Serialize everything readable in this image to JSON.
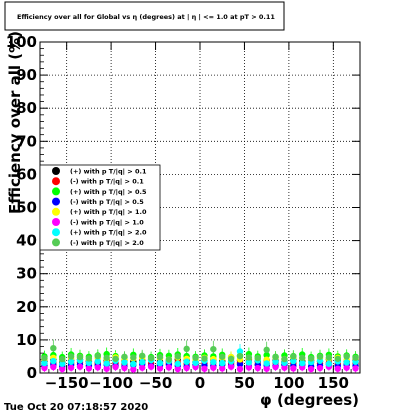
{
  "footer": {
    "timestamp": "Tue Oct 20 07:18:57 2020"
  },
  "chart_data": {
    "type": "scatter",
    "title": "Efficiency over all for Global vs η (degrees) at | η | <= 1.0 at pT > 0.11",
    "xlabel": "φ (degrees)",
    "ylabel": "Efficiency over all (%)",
    "xlim": [
      -180,
      180
    ],
    "ylim": [
      0,
      100
    ],
    "x_ticks": [
      -150,
      -100,
      -50,
      0,
      50,
      100,
      150
    ],
    "y_ticks": [
      0,
      10,
      20,
      30,
      40,
      50,
      60,
      70,
      80,
      90,
      100
    ],
    "grid": true,
    "legend_position": "left-middle",
    "x": [
      -175,
      -165,
      -155,
      -145,
      -135,
      -125,
      -115,
      -105,
      -95,
      -85,
      -75,
      -65,
      -55,
      -45,
      -35,
      -25,
      -15,
      -5,
      5,
      15,
      25,
      35,
      45,
      55,
      65,
      75,
      85,
      95,
      105,
      115,
      125,
      135,
      145,
      155,
      165,
      175
    ],
    "series": [
      {
        "name": "(+) with p T/|q| > 0.1",
        "color": "#000000",
        "marker": "circle",
        "values": [
          3.5,
          4.0,
          3.2,
          3.8,
          4.1,
          3.6,
          3.3,
          3.9,
          4.2,
          3.7,
          3.4,
          3.8,
          4.0,
          3.5,
          3.6,
          4.1,
          3.9,
          3.3,
          3.7,
          4.0,
          3.6,
          3.4,
          3.8,
          4.2,
          3.5,
          3.9,
          3.7,
          3.3,
          4.0,
          3.6,
          3.8,
          3.5,
          4.1,
          3.7,
          3.4,
          3.9
        ]
      },
      {
        "name": "(-) with p T/|q| > 0.1",
        "color": "#ff0000",
        "marker": "circle",
        "values": [
          2.8,
          3.1,
          2.6,
          3.0,
          3.3,
          2.9,
          2.7,
          3.2,
          3.0,
          2.8,
          2.5,
          3.1,
          2.9,
          2.7,
          3.0,
          3.2,
          2.8,
          2.6,
          2.9,
          3.1,
          2.7,
          2.8,
          3.0,
          3.3,
          2.6,
          2.9,
          3.1,
          2.7,
          3.0,
          2.8,
          3.2,
          2.9,
          3.1,
          2.7,
          2.8,
          3.0
        ]
      },
      {
        "name": "(+) with p T/|q| > 0.5",
        "color": "#00ff00",
        "marker": "circle",
        "values": [
          5.0,
          5.4,
          4.8,
          5.6,
          5.2,
          4.9,
          5.3,
          5.7,
          5.1,
          4.7,
          5.5,
          5.0,
          4.8,
          5.4,
          5.2,
          5.6,
          5.1,
          4.9,
          5.3,
          5.0,
          5.5,
          4.8,
          5.2,
          5.7,
          5.0,
          5.4,
          4.9,
          5.3,
          5.1,
          5.6,
          4.8,
          5.2,
          5.5,
          5.0,
          5.3,
          4.9
        ]
      },
      {
        "name": "(-) with p T/|q| > 0.5",
        "color": "#0000ff",
        "marker": "circle",
        "values": [
          2.2,
          2.5,
          2.0,
          2.4,
          2.6,
          2.1,
          2.3,
          2.5,
          2.2,
          2.0,
          2.4,
          2.6,
          2.1,
          2.3,
          2.5,
          2.2,
          2.0,
          2.4,
          2.3,
          2.1,
          2.5,
          2.2,
          2.6,
          2.0,
          2.4,
          2.3,
          2.1,
          2.5,
          2.2,
          2.4,
          2.0,
          2.3,
          2.6,
          2.1,
          2.4,
          2.2
        ]
      },
      {
        "name": "(+) with p T/|q| > 1.0",
        "color": "#ffff00",
        "marker": "circle",
        "values": [
          4.2,
          4.6,
          4.0,
          4.4,
          4.8,
          4.1,
          4.5,
          4.3,
          4.7,
          4.0,
          4.4,
          4.6,
          4.2,
          4.5,
          4.1,
          4.7,
          4.3,
          4.0,
          4.6,
          4.2,
          4.4,
          4.8,
          4.1,
          4.5,
          4.3,
          4.0,
          4.6,
          4.2,
          4.7,
          4.4,
          4.1,
          4.5,
          4.3,
          4.6,
          4.0,
          4.4
        ]
      },
      {
        "name": "(-) with p T/|q| > 1.0",
        "color": "#ff00ff",
        "marker": "circle",
        "values": [
          1.5,
          1.8,
          1.2,
          1.6,
          1.9,
          1.4,
          1.7,
          1.3,
          1.8,
          1.5,
          1.1,
          1.6,
          1.9,
          1.4,
          1.7,
          1.2,
          1.5,
          1.8,
          1.3,
          1.6,
          1.4,
          1.9,
          1.2,
          1.7,
          1.5,
          1.3,
          1.8,
          1.6,
          1.4,
          1.7,
          1.2,
          1.5,
          1.9,
          1.3,
          1.6,
          1.4
        ]
      },
      {
        "name": "(+) with p T/|q| > 2.0",
        "color": "#00ffff",
        "marker": "circle",
        "values": [
          3.0,
          3.6,
          2.8,
          3.4,
          3.8,
          3.1,
          3.5,
          2.9,
          3.7,
          3.2,
          2.7,
          3.3,
          3.9,
          3.0,
          3.6,
          2.8,
          3.4,
          3.1,
          3.7,
          3.3,
          3.0,
          3.5,
          6.5,
          3.2,
          3.8,
          2.9,
          3.4,
          3.1,
          3.6,
          3.0,
          3.3,
          3.7,
          2.8,
          3.5,
          3.2,
          3.4
        ]
      },
      {
        "name": "(-) with p T/|q| > 2.0",
        "color": "#55cc55",
        "marker": "circle",
        "values": [
          4.5,
          7.5,
          4.2,
          5.0,
          4.8,
          4.4,
          5.1,
          4.6,
          4.3,
          4.9,
          4.7,
          5.2,
          4.5,
          4.8,
          4.1,
          5.0,
          7.3,
          4.6,
          4.4,
          7.2,
          4.9,
          4.3,
          5.1,
          4.7,
          4.5,
          7.0,
          4.8,
          4.2,
          5.0,
          4.6,
          4.4,
          4.9,
          4.7,
          4.3,
          5.0,
          4.6
        ]
      }
    ]
  }
}
